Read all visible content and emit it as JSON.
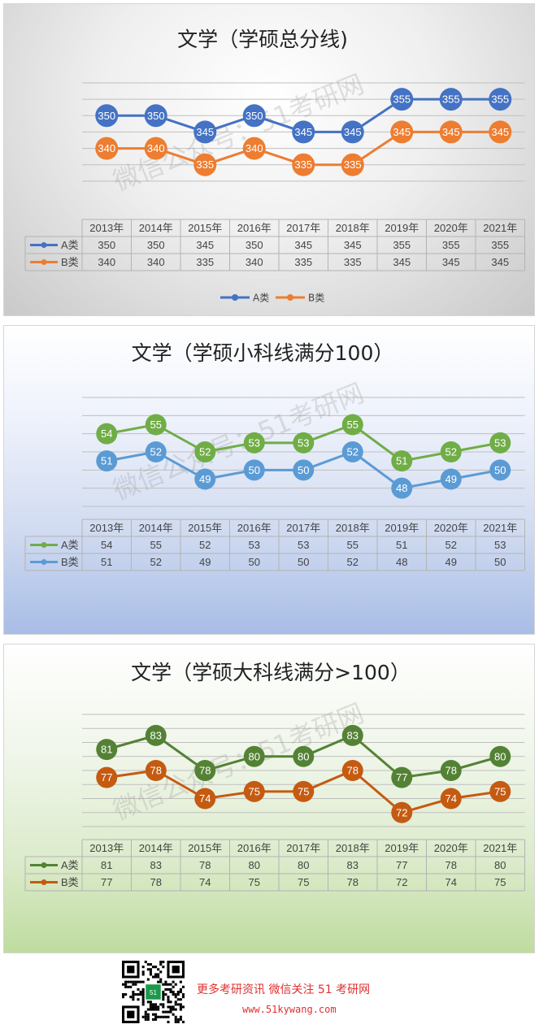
{
  "watermark_text": "微信公众号：51考研网",
  "chart_data": [
    {
      "type": "line",
      "title": "文学（学硕总分线)",
      "categories": [
        "2013年",
        "2014年",
        "2015年",
        "2016年",
        "2017年",
        "2018年",
        "2019年",
        "2020年",
        "2021年"
      ],
      "series": [
        {
          "name": "A类",
          "color": "#4472C4",
          "values": [
            350,
            350,
            345,
            350,
            345,
            345,
            355,
            355,
            355
          ]
        },
        {
          "name": "B类",
          "color": "#ED7D31",
          "values": [
            340,
            340,
            335,
            340,
            335,
            335,
            345,
            345,
            345
          ]
        }
      ],
      "ylim": [
        325,
        360
      ],
      "gridlines": [
        330,
        335,
        340,
        345,
        350,
        355,
        360
      ],
      "grid": true,
      "legend": "bottom",
      "data_table": true
    },
    {
      "type": "line",
      "title": "文学（学硕小科线满分100）",
      "categories": [
        "2013年",
        "2014年",
        "2015年",
        "2016年",
        "2017年",
        "2018年",
        "2019年",
        "2020年",
        "2021年"
      ],
      "series": [
        {
          "name": "A类",
          "color": "#70AD47",
          "values": [
            54,
            55,
            52,
            53,
            53,
            55,
            51,
            52,
            53
          ]
        },
        {
          "name": "B类",
          "color": "#5B9BD5",
          "values": [
            51,
            52,
            49,
            50,
            50,
            52,
            48,
            49,
            50
          ]
        }
      ],
      "ylim": [
        46,
        58
      ],
      "gridlines": [
        46,
        48,
        50,
        52,
        54,
        56,
        58
      ],
      "grid": true,
      "legend": "none",
      "data_table": true
    },
    {
      "type": "line",
      "title": "文学（学硕大科线满分>100）",
      "categories": [
        "2013年",
        "2014年",
        "2015年",
        "2016年",
        "2017年",
        "2018年",
        "2019年",
        "2020年",
        "2021年"
      ],
      "series": [
        {
          "name": "A类",
          "color": "#548235",
          "values": [
            81,
            83,
            78,
            80,
            80,
            83,
            77,
            78,
            80
          ]
        },
        {
          "name": "B类",
          "color": "#C55A11",
          "values": [
            77,
            78,
            74,
            75,
            75,
            78,
            72,
            74,
            75
          ]
        }
      ],
      "ylim": [
        70,
        86
      ],
      "gridlines": [
        70,
        72,
        74,
        76,
        78,
        80,
        82,
        84,
        86
      ],
      "grid": true,
      "legend": "none",
      "data_table": true
    }
  ],
  "footer": {
    "qr_badge": "51",
    "promo_text": "更多考研资讯  微信关注 51 考研网",
    "site_url": "www.51kywang.com"
  }
}
